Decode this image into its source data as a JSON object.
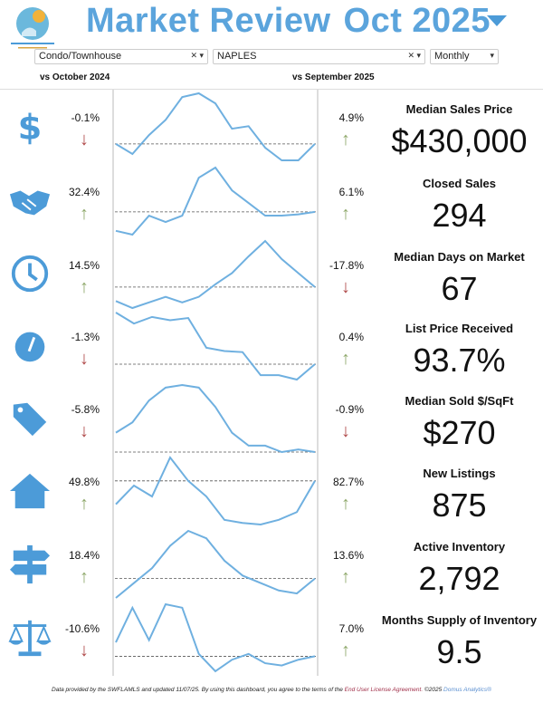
{
  "logo": {
    "text": "BONITA SPRINGS ESTERO REALTORS"
  },
  "header": {
    "title": "Market Review",
    "period": "Oct 2025"
  },
  "filters": {
    "property_type": "Condo/Townhouse",
    "city": "NAPLES",
    "frequency": "Monthly"
  },
  "columns": {
    "yoy": "vs October 2024",
    "mom": "vs September 2025"
  },
  "colors": {
    "accent": "#5ba4dc",
    "up": "#8ea86a",
    "down": "#b04a4a",
    "line": "#6fb0e0"
  },
  "metrics": [
    {
      "icon": "dollar-icon",
      "label": "Median Sales Price",
      "value": "$430,000",
      "yoy": "-0.1%",
      "yoy_dir": "down",
      "mom": "4.9%",
      "mom_dir": "up",
      "trend": [
        18,
        10,
        25,
        37,
        55,
        58,
        50,
        30,
        32,
        15,
        5,
        5,
        18
      ]
    },
    {
      "icon": "handshake-icon",
      "label": "Closed Sales",
      "value": "294",
      "yoy": "32.4%",
      "yoy_dir": "up",
      "mom": "6.1%",
      "mom_dir": "up",
      "trend": [
        25,
        22,
        37,
        32,
        37,
        67,
        75,
        57,
        47,
        37,
        37,
        38,
        40
      ]
    },
    {
      "icon": "clock-icon",
      "label": "Median Days on Market",
      "value": "67",
      "yoy": "14.5%",
      "yoy_dir": "up",
      "mom": "-17.8%",
      "mom_dir": "down",
      "trend": [
        25,
        20,
        24,
        28,
        24,
        28,
        37,
        45,
        57,
        68,
        55,
        45,
        35
      ]
    },
    {
      "icon": "gauge-icon",
      "label": "List Price Received",
      "value": "93.7%",
      "yoy": "-1.3%",
      "yoy_dir": "down",
      "mom": "0.4%",
      "mom_dir": "up",
      "trend": [
        77,
        67,
        73,
        70,
        72,
        45,
        42,
        41,
        20,
        20,
        16,
        30
      ]
    },
    {
      "icon": "price-tag-icon",
      "label": "Median Sold $/SqFt",
      "value": "$270",
      "yoy": "-5.8%",
      "yoy_dir": "down",
      "mom": "-0.9%",
      "mom_dir": "down",
      "trend": [
        35,
        43,
        60,
        70,
        72,
        70,
        55,
        35,
        25,
        25,
        20,
        22,
        20
      ]
    },
    {
      "icon": "home-icon",
      "label": "New Listings",
      "value": "875",
      "yoy": "49.8%",
      "yoy_dir": "up",
      "mom": "82.7%",
      "mom_dir": "up",
      "trend": [
        32,
        44,
        37,
        62,
        47,
        37,
        22,
        20,
        19,
        22,
        27,
        47
      ]
    },
    {
      "icon": "signpost-icon",
      "label": "Active Inventory",
      "value": "2,792",
      "yoy": "18.4%",
      "yoy_dir": "up",
      "mom": "13.6%",
      "mom_dir": "up",
      "trend": [
        22,
        32,
        42,
        57,
        67,
        62,
        47,
        37,
        32,
        27,
        25,
        35
      ]
    },
    {
      "icon": "scales-icon",
      "label": "Months Supply of Inventory",
      "value": "9.5",
      "yoy": "-10.6%",
      "yoy_dir": "down",
      "mom": "7.0%",
      "mom_dir": "up",
      "trend": [
        42,
        72,
        44,
        75,
        72,
        32,
        17,
        27,
        32,
        24,
        22,
        27,
        30
      ]
    }
  ],
  "footer": {
    "text": "Data provided by the SWFLAMLS and updated 11/07/25.  By using this dashboard, you agree to the terms of the ",
    "link": "End User License Agreement.",
    "copyright": " ©2025 ",
    "brand": "Domus Analytics®"
  }
}
